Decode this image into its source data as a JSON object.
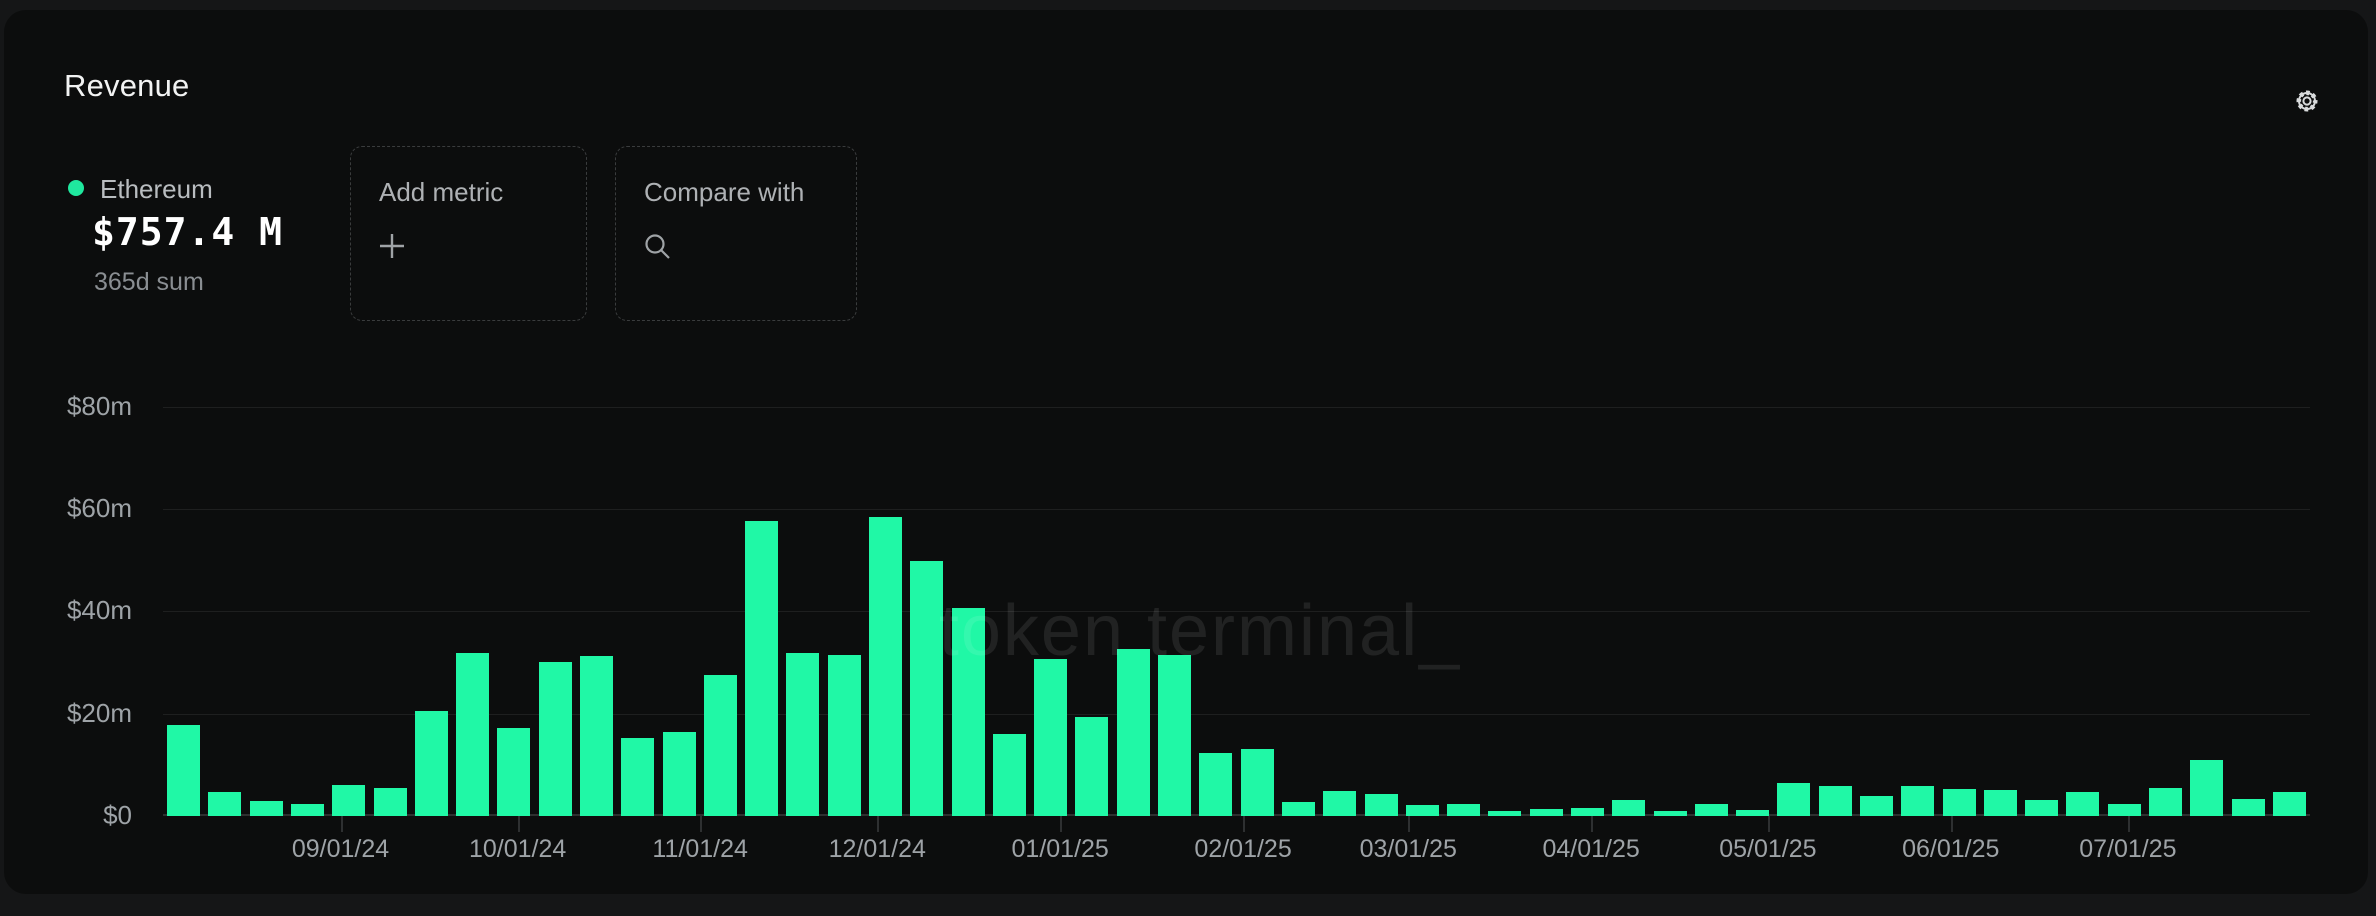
{
  "page": {
    "background": "#151617",
    "card_background": "#0c0d0d"
  },
  "header": {
    "title": "Revenue",
    "settings_icon": "gear-icon",
    "icon_color": "#d9dbdc"
  },
  "metric": {
    "name": "Ethereum",
    "value": "$757.4 M",
    "period": "365d sum",
    "dot_color": "#1fe89e"
  },
  "actions": {
    "add_metric": {
      "label": "Add metric",
      "icon": "plus-icon",
      "icon_color": "#9fa3a6"
    },
    "compare_with": {
      "label": "Compare with",
      "icon": "search-icon",
      "icon_color": "#9fa3a6"
    }
  },
  "watermark": "token terminal_",
  "chart_data": {
    "type": "bar",
    "title": "Ethereum weekly revenue",
    "unit": "USD millions",
    "bar_color": "#20f8a6",
    "grid": true,
    "ylim": [
      0,
      80
    ],
    "xlabel": "",
    "ylabel": "",
    "y_ticks": [
      {
        "label": "$0",
        "value": 0
      },
      {
        "label": "$20m",
        "value": 20
      },
      {
        "label": "$40m",
        "value": 40
      },
      {
        "label": "$60m",
        "value": 60
      },
      {
        "label": "$80m",
        "value": 80
      }
    ],
    "x_ticks": [
      {
        "label": "09/01/24",
        "week_offset": 4
      },
      {
        "label": "10/01/24",
        "week_offset": 8.29
      },
      {
        "label": "11/01/24",
        "week_offset": 12.71
      },
      {
        "label": "12/01/24",
        "week_offset": 17
      },
      {
        "label": "01/01/25",
        "week_offset": 21.43
      },
      {
        "label": "02/01/25",
        "week_offset": 25.86
      },
      {
        "label": "03/01/25",
        "week_offset": 29.86
      },
      {
        "label": "04/01/25",
        "week_offset": 34.29
      },
      {
        "label": "05/01/25",
        "week_offset": 38.57
      },
      {
        "label": "06/01/25",
        "week_offset": 43
      },
      {
        "label": "07/01/25",
        "week_offset": 47.29
      }
    ],
    "x": [
      "08/04/24",
      "08/11/24",
      "08/18/24",
      "08/25/24",
      "09/01/24",
      "09/08/24",
      "09/15/24",
      "09/22/24",
      "09/29/24",
      "10/06/24",
      "10/13/24",
      "10/20/24",
      "10/27/24",
      "11/03/24",
      "11/10/24",
      "11/17/24",
      "11/24/24",
      "12/01/24",
      "12/08/24",
      "12/15/24",
      "12/22/24",
      "12/29/24",
      "01/05/25",
      "01/12/25",
      "01/19/25",
      "01/26/25",
      "02/02/25",
      "02/09/25",
      "02/16/25",
      "02/23/25",
      "03/02/25",
      "03/09/25",
      "03/16/25",
      "03/23/25",
      "03/30/25",
      "04/06/25",
      "04/13/25",
      "04/20/25",
      "04/27/25",
      "05/04/25",
      "05/11/25",
      "05/18/25",
      "05/25/25",
      "06/01/25",
      "06/08/25",
      "06/15/25",
      "06/22/25",
      "06/29/25",
      "07/06/25",
      "07/13/25",
      "07/20/25",
      "07/27/25"
    ],
    "values": [
      17.8,
      4.7,
      2.9,
      2.4,
      6.0,
      5.5,
      20.6,
      31.8,
      17.3,
      30.1,
      31.3,
      15.3,
      16.5,
      27.5,
      57.6,
      31.8,
      31.4,
      58.4,
      49.9,
      40.7,
      16.0,
      30.7,
      19.3,
      32.6,
      31.5,
      12.3,
      13.1,
      2.8,
      4.8,
      4.3,
      2.1,
      2.4,
      0.9,
      1.4,
      1.6,
      3.1,
      1.0,
      2.3,
      1.1,
      6.5,
      5.9,
      3.9,
      5.9,
      5.3,
      5.1,
      3.1,
      4.6,
      2.3,
      5.4,
      11.0,
      3.3,
      4.6
    ]
  }
}
